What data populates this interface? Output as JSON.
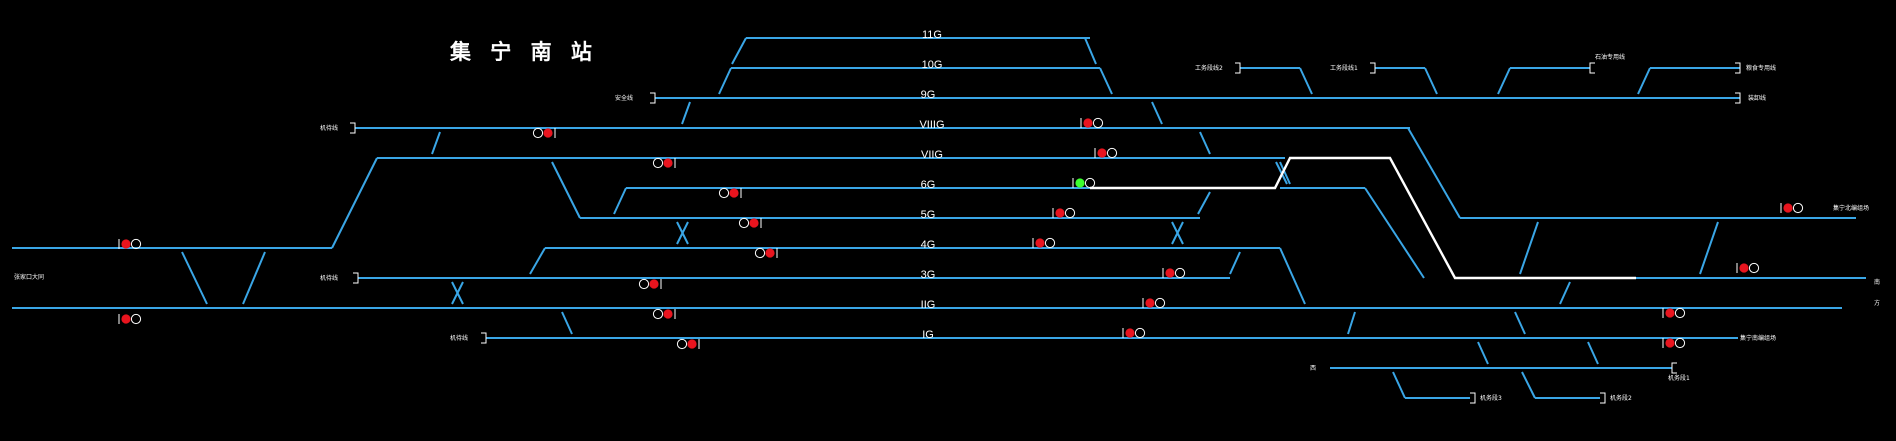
{
  "station": {
    "title": "集 宁 南 站"
  },
  "colors": {
    "track": "#3aa6e6",
    "route": "#ffffff",
    "signal_red": "#e8141e",
    "signal_green": "#3cff2e",
    "background": "#000000"
  },
  "tracks": [
    {
      "id": "11G",
      "label": "11G"
    },
    {
      "id": "10G",
      "label": "10G"
    },
    {
      "id": "9G",
      "label": "9G"
    },
    {
      "id": "VIIIG",
      "label": "VIIIG"
    },
    {
      "id": "VIIG",
      "label": "VIIG"
    },
    {
      "id": "6G",
      "label": "6G"
    },
    {
      "id": "5G",
      "label": "5G"
    },
    {
      "id": "4G",
      "label": "4G"
    },
    {
      "id": "3G",
      "label": "3G"
    },
    {
      "id": "IIG",
      "label": "IIG"
    },
    {
      "id": "IG",
      "label": "IG"
    }
  ],
  "side_labels": {
    "an_quan_xian": "安全线",
    "qian_chu_xian_1": "机待线",
    "qian_chu_xian_2": "机待线",
    "qian_chu_xian_3": "机待线",
    "zhang_jiakou": "张家口大同",
    "gongwu_2": "工务段线2",
    "gongwu_1": "工务段线1",
    "shiyou_zhuanyong": "石油专用线",
    "liangshi_zhuanyong": "粮食专用线",
    "zhuangxie": "装卸线",
    "jining_north": "集宁北编组场",
    "jining_south": "集宁南编组场",
    "right_top": "南",
    "right_bottom": "方",
    "xi": "西",
    "jiwu_1": "机务段1",
    "jiwu_2": "机务段2",
    "jiwu_3": "机务段3"
  },
  "signals": [
    {
      "id": "s-left-upper",
      "aspect": "red"
    },
    {
      "id": "s-left-lower",
      "aspect": "red"
    },
    {
      "id": "s-viiig-left",
      "aspect": "red"
    },
    {
      "id": "s-viig-left",
      "aspect": "red"
    },
    {
      "id": "s-6g-left",
      "aspect": "red"
    },
    {
      "id": "s-5g-left",
      "aspect": "red"
    },
    {
      "id": "s-4g-left",
      "aspect": "red"
    },
    {
      "id": "s-3g-left",
      "aspect": "red"
    },
    {
      "id": "s-iig-left",
      "aspect": "red"
    },
    {
      "id": "s-ig-left",
      "aspect": "red"
    },
    {
      "id": "s-viiig-right",
      "aspect": "red"
    },
    {
      "id": "s-viig-right",
      "aspect": "red"
    },
    {
      "id": "s-6g-right",
      "aspect": "green"
    },
    {
      "id": "s-5g-right",
      "aspect": "red"
    },
    {
      "id": "s-4g-right",
      "aspect": "red"
    },
    {
      "id": "s-3g-right",
      "aspect": "red"
    },
    {
      "id": "s-iig-right",
      "aspect": "red"
    },
    {
      "id": "s-ig-right",
      "aspect": "red"
    },
    {
      "id": "s-far-right-1",
      "aspect": "red"
    },
    {
      "id": "s-far-right-2",
      "aspect": "red"
    },
    {
      "id": "s-far-right-3",
      "aspect": "red"
    },
    {
      "id": "s-far-right-4",
      "aspect": "red"
    }
  ]
}
